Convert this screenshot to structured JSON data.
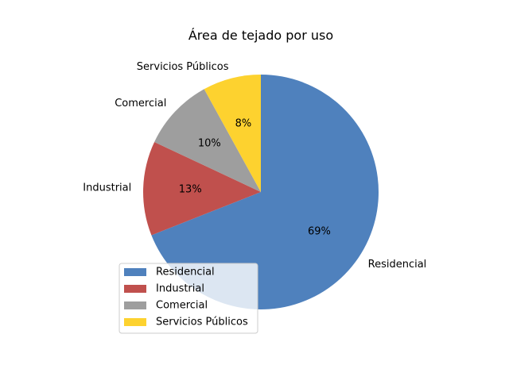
{
  "chart_data": {
    "type": "pie",
    "title": "Área de tejado por uso",
    "categories": [
      "Residencial",
      "Industrial",
      "Comercial",
      "Servicios Públicos"
    ],
    "values": [
      69,
      13,
      10,
      8
    ],
    "percent_labels": [
      "69%",
      "13%",
      "10%",
      "8%"
    ],
    "colors": [
      "#4f81bd",
      "#c0504d",
      "#9e9e9e",
      "#fdd22f"
    ],
    "start_angle_deg": 90,
    "direction": "clockwise",
    "legend": {
      "entries": [
        "Residencial",
        "Industrial",
        "Comercial",
        "Servicios Públicos"
      ],
      "placement": "lower-left"
    }
  }
}
